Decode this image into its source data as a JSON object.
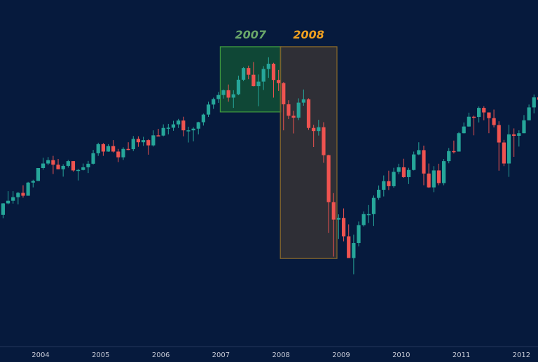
{
  "chart_data": {
    "type": "candlestick",
    "interval": "monthly",
    "first_month": "2003-05",
    "ylim": [
      364,
      1816
    ],
    "grid": false,
    "colors": {
      "background": "#061a3d",
      "up": "#26a69a",
      "down": "#ef5350",
      "axis_text": "#c8ccd8"
    },
    "x_tick_labels": [
      "2004",
      "2005",
      "2006",
      "2007",
      "2008",
      "2009",
      "2010",
      "2011",
      "2012"
    ],
    "highlights": [
      {
        "label": "2007",
        "from": "2007-01",
        "to": "2007-12",
        "price_range": [
          1347,
          1620
        ],
        "label_color": "#6aa86a",
        "fill": "rgba(24,110,50,0.55)",
        "border": "#3f9a3f"
      },
      {
        "label": "2008",
        "from": "2008-01",
        "to": "2008-12",
        "price_range": [
          733,
          1620
        ],
        "label_color": "#f0a020",
        "fill": "rgba(58,52,52,0.8)",
        "border": "#8a6a2a"
      }
    ],
    "ohlc": [
      [
        916,
        965,
        902,
        964
      ],
      [
        964,
        1015,
        960,
        975
      ],
      [
        975,
        1015,
        963,
        990
      ],
      [
        990,
        1012,
        960,
        1008
      ],
      [
        1008,
        1040,
        988,
        996
      ],
      [
        996,
        1054,
        996,
        1051
      ],
      [
        1051,
        1063,
        1031,
        1058
      ],
      [
        1058,
        1112,
        1058,
        1112
      ],
      [
        1112,
        1155,
        1105,
        1131
      ],
      [
        1131,
        1158,
        1124,
        1145
      ],
      [
        1145,
        1163,
        1087,
        1126
      ],
      [
        1126,
        1150,
        1107,
        1107
      ],
      [
        1107,
        1128,
        1076,
        1121
      ],
      [
        1121,
        1146,
        1114,
        1141
      ],
      [
        1141,
        1141,
        1097,
        1102
      ],
      [
        1102,
        1109,
        1060,
        1104
      ],
      [
        1104,
        1131,
        1102,
        1115
      ],
      [
        1115,
        1142,
        1091,
        1130
      ],
      [
        1130,
        1188,
        1127,
        1174
      ],
      [
        1174,
        1218,
        1163,
        1212
      ],
      [
        1212,
        1217,
        1163,
        1181
      ],
      [
        1181,
        1212,
        1180,
        1204
      ],
      [
        1204,
        1229,
        1177,
        1181
      ],
      [
        1181,
        1192,
        1137,
        1157
      ],
      [
        1157,
        1199,
        1146,
        1192
      ],
      [
        1192,
        1220,
        1187,
        1191
      ],
      [
        1191,
        1246,
        1183,
        1234
      ],
      [
        1234,
        1245,
        1201,
        1220
      ],
      [
        1220,
        1243,
        1205,
        1229
      ],
      [
        1229,
        1233,
        1168,
        1207
      ],
      [
        1207,
        1270,
        1202,
        1249
      ],
      [
        1249,
        1276,
        1246,
        1248
      ],
      [
        1248,
        1295,
        1245,
        1280
      ],
      [
        1280,
        1297,
        1253,
        1281
      ],
      [
        1281,
        1310,
        1268,
        1295
      ],
      [
        1295,
        1318,
        1280,
        1311
      ],
      [
        1311,
        1327,
        1245,
        1270
      ],
      [
        1270,
        1285,
        1219,
        1270
      ],
      [
        1270,
        1283,
        1224,
        1277
      ],
      [
        1277,
        1306,
        1253,
        1304
      ],
      [
        1304,
        1340,
        1290,
        1336
      ],
      [
        1336,
        1390,
        1326,
        1378
      ],
      [
        1378,
        1407,
        1360,
        1401
      ],
      [
        1401,
        1431,
        1385,
        1418
      ],
      [
        1418,
        1441,
        1403,
        1438
      ],
      [
        1438,
        1462,
        1390,
        1407
      ],
      [
        1407,
        1438,
        1364,
        1421
      ],
      [
        1421,
        1499,
        1417,
        1482
      ],
      [
        1482,
        1535,
        1476,
        1531
      ],
      [
        1531,
        1541,
        1484,
        1503
      ],
      [
        1503,
        1556,
        1454,
        1455
      ],
      [
        1455,
        1504,
        1371,
        1474
      ],
      [
        1474,
        1539,
        1439,
        1527
      ],
      [
        1527,
        1576,
        1490,
        1549
      ],
      [
        1549,
        1553,
        1407,
        1481
      ],
      [
        1481,
        1523,
        1435,
        1468
      ],
      [
        1468,
        1472,
        1270,
        1379
      ],
      [
        1379,
        1396,
        1317,
        1331
      ],
      [
        1331,
        1352,
        1257,
        1323
      ],
      [
        1323,
        1404,
        1313,
        1386
      ],
      [
        1386,
        1441,
        1373,
        1400
      ],
      [
        1400,
        1404,
        1272,
        1280
      ],
      [
        1280,
        1293,
        1200,
        1267
      ],
      [
        1267,
        1314,
        1248,
        1283
      ],
      [
        1283,
        1304,
        1134,
        1166
      ],
      [
        1166,
        1168,
        840,
        969
      ],
      [
        969,
        1007,
        741,
        896
      ],
      [
        896,
        918,
        815,
        903
      ],
      [
        903,
        943,
        805,
        826
      ],
      [
        826,
        876,
        735,
        735
      ],
      [
        735,
        833,
        667,
        798
      ],
      [
        798,
        888,
        784,
        873
      ],
      [
        873,
        930,
        867,
        919
      ],
      [
        919,
        957,
        882,
        919
      ],
      [
        919,
        997,
        869,
        987
      ],
      [
        987,
        1039,
        979,
        1021
      ],
      [
        1021,
        1081,
        993,
        1057
      ],
      [
        1057,
        1101,
        1020,
        1036
      ],
      [
        1036,
        1113,
        1030,
        1096
      ],
      [
        1096,
        1130,
        1086,
        1115
      ],
      [
        1115,
        1151,
        1071,
        1074
      ],
      [
        1074,
        1113,
        1045,
        1104
      ],
      [
        1104,
        1181,
        1102,
        1169
      ],
      [
        1169,
        1220,
        1166,
        1187
      ],
      [
        1187,
        1206,
        1040,
        1089
      ],
      [
        1089,
        1131,
        1029,
        1031
      ],
      [
        1031,
        1120,
        1011,
        1102
      ],
      [
        1102,
        1130,
        1040,
        1049
      ],
      [
        1049,
        1150,
        1040,
        1141
      ],
      [
        1141,
        1196,
        1132,
        1183
      ],
      [
        1183,
        1227,
        1173,
        1181
      ],
      [
        1181,
        1263,
        1181,
        1258
      ],
      [
        1258,
        1303,
        1257,
        1286
      ],
      [
        1286,
        1344,
        1285,
        1327
      ],
      [
        1327,
        1332,
        1249,
        1326
      ],
      [
        1326,
        1370,
        1303,
        1364
      ],
      [
        1364,
        1371,
        1312,
        1345
      ],
      [
        1345,
        1345,
        1258,
        1321
      ],
      [
        1321,
        1357,
        1282,
        1292
      ],
      [
        1292,
        1308,
        1101,
        1219
      ],
      [
        1219,
        1230,
        1120,
        1131
      ],
      [
        1131,
        1293,
        1075,
        1253
      ],
      [
        1253,
        1278,
        1159,
        1247
      ],
      [
        1247,
        1270,
        1202,
        1258
      ],
      [
        1258,
        1334,
        1258,
        1312
      ],
      [
        1312,
        1378,
        1312,
        1366
      ],
      [
        1366,
        1420,
        1341,
        1408
      ],
      [
        1408,
        1422,
        1358,
        1398
      ]
    ]
  }
}
